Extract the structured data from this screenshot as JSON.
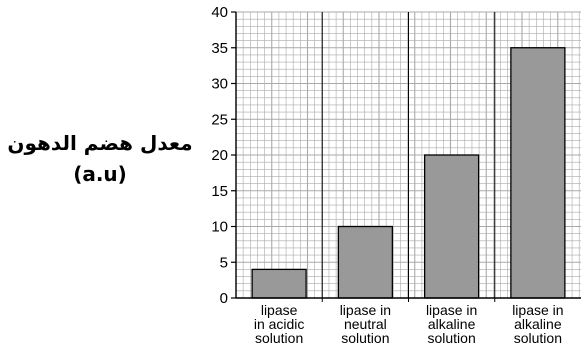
{
  "chart_data": {
    "type": "bar",
    "title": "",
    "xlabel": "",
    "ylabel_line1": "معدل هضم الدهون",
    "ylabel_line2": "(a.u)",
    "ylim": [
      0,
      40
    ],
    "y_ticks": [
      0,
      5,
      10,
      15,
      20,
      25,
      30,
      35,
      40
    ],
    "grid": true,
    "categories": [
      [
        "lipase",
        "in acidic",
        "solution"
      ],
      [
        "lipase in",
        "neutral",
        "solution"
      ],
      [
        "lipase in",
        "alkaline",
        "solution"
      ],
      [
        "lipase in",
        "alkaline",
        "solution"
      ]
    ],
    "values": [
      4,
      10,
      20,
      35
    ],
    "bar_color": "#999999",
    "grid_color": "#aaaaaa"
  }
}
